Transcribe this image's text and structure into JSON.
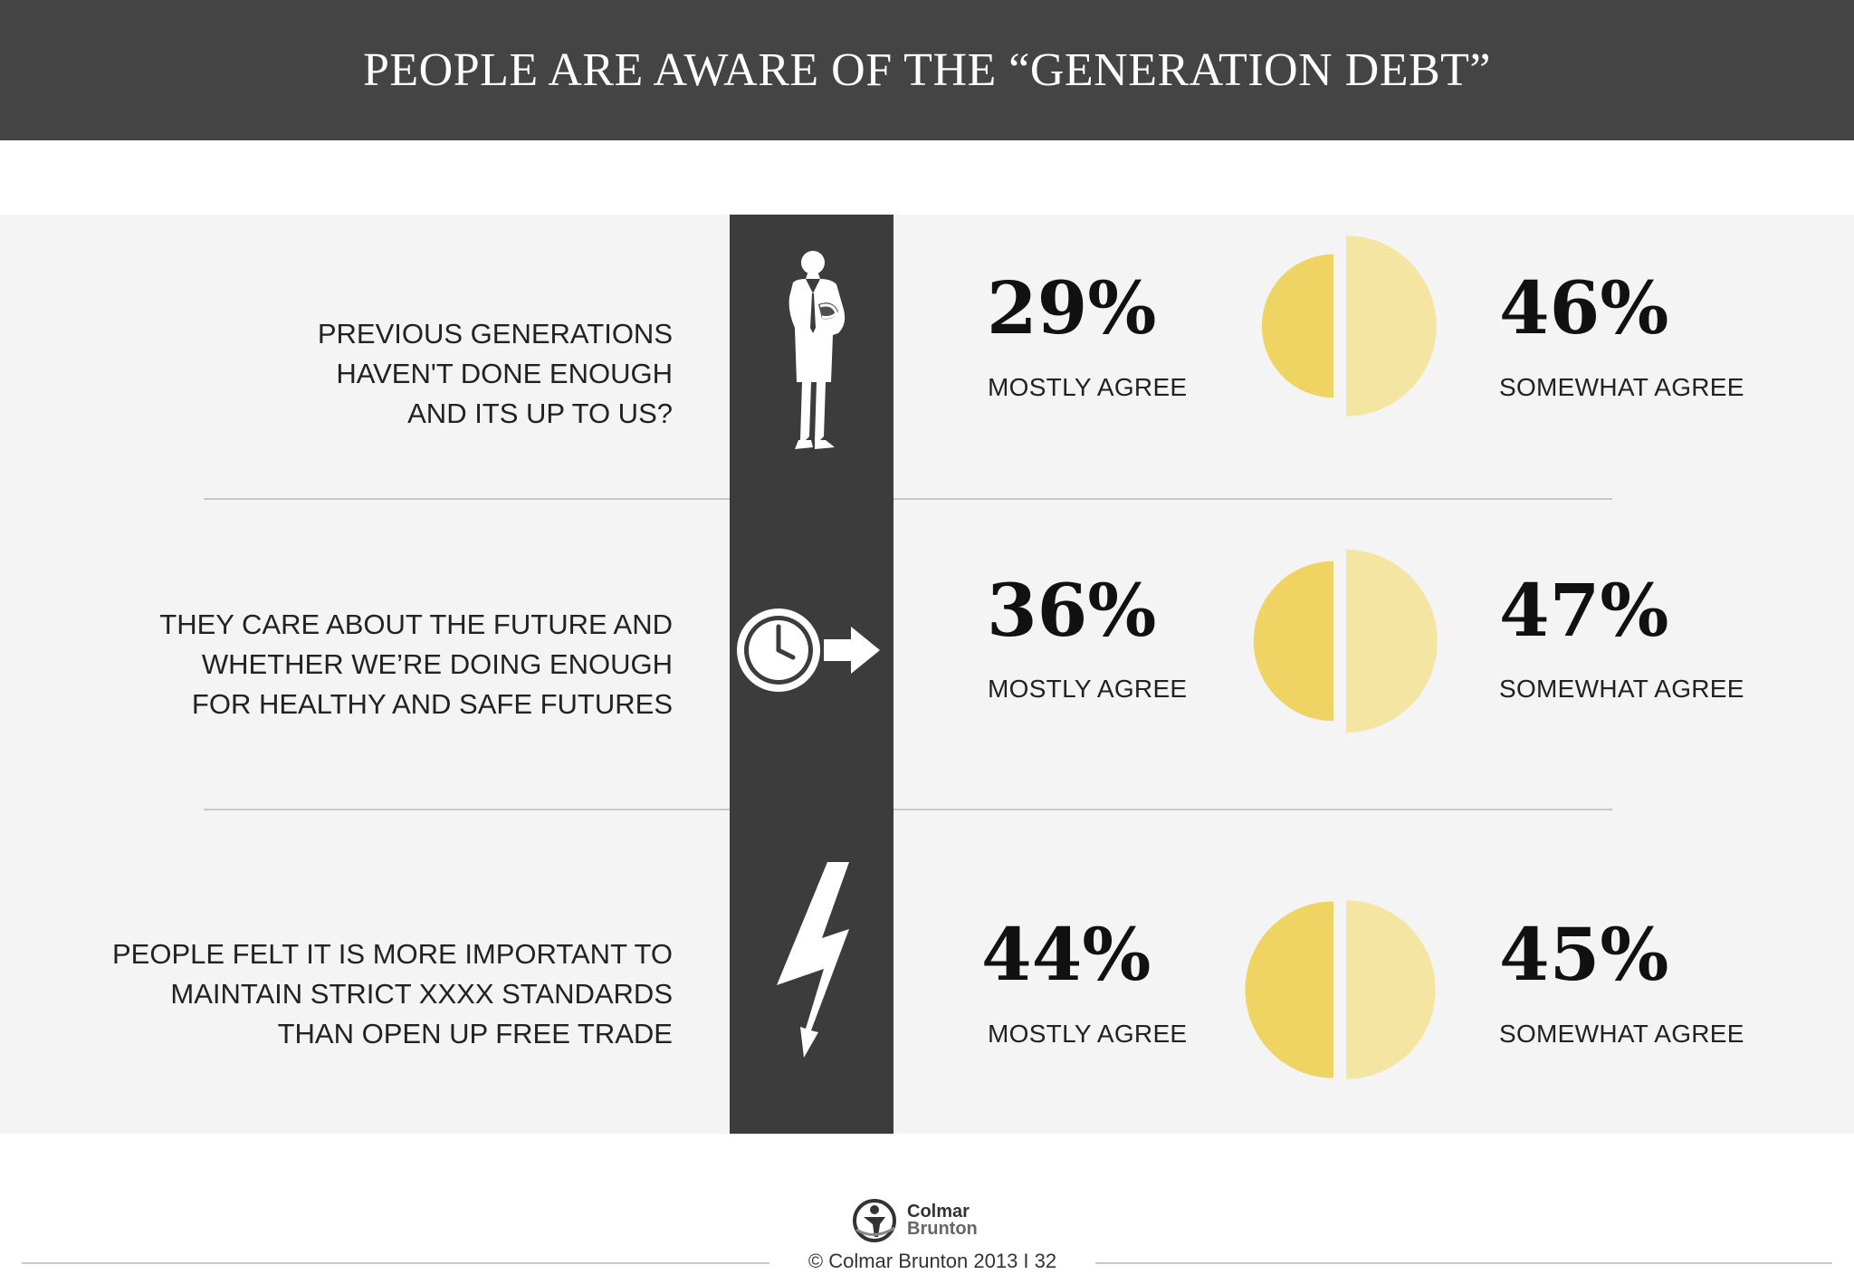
{
  "header": {
    "title": "PEOPLE ARE AWARE OF THE “GENERATION DEBT”"
  },
  "colors": {
    "mostly": "#EFD363",
    "somewhat": "#F4E5A3",
    "spine": "#3C3C3C",
    "header": "#444444"
  },
  "rows": [
    {
      "statement": "PREVIOUS GENERATIONS\nHAVEN'T DONE ENOUGH\nAND ITS UP TO US?",
      "icon": "businessman-icon",
      "mostly_pct": "29%",
      "mostly_label": "MOSTLY AGREE",
      "somewhat_pct": "46%",
      "somewhat_label": "SOMEWHAT AGREE"
    },
    {
      "statement": "THEY CARE ABOUT THE FUTURE AND\nWHETHER WE’RE DOING ENOUGH\nFOR HEALTHY AND SAFE FUTURES",
      "icon": "clock-arrow-icon",
      "mostly_pct": "36%",
      "mostly_label": "MOSTLY AGREE",
      "somewhat_pct": "47%",
      "somewhat_label": "SOMEWHAT AGREE"
    },
    {
      "statement": "PEOPLE FELT IT IS MORE IMPORTANT TO\nMAINTAIN STRICT XXXX STANDARDS\nTHAN OPEN UP FREE TRADE",
      "icon": "lightning-bolt-icon",
      "mostly_pct": "44%",
      "mostly_label": "MOSTLY AGREE",
      "somewhat_pct": "45%",
      "somewhat_label": "SOMEWHAT AGREE"
    }
  ],
  "chart_data": {
    "type": "pie",
    "title": "PEOPLE ARE AWARE OF THE “GENERATION DEBT”",
    "categories": [
      "PREVIOUS GENERATIONS HAVEN'T DONE ENOUGH AND ITS UP TO US?",
      "THEY CARE ABOUT THE FUTURE AND WHETHER WE’RE DOING ENOUGH FOR HEALTHY AND SAFE FUTURES",
      "PEOPLE FELT IT IS MORE IMPORTANT TO MAINTAIN STRICT XXXX STANDARDS THAN OPEN UP FREE TRADE"
    ],
    "series": [
      {
        "name": "MOSTLY AGREE",
        "values": [
          29,
          36,
          44
        ],
        "color": "#EFD363"
      },
      {
        "name": "SOMEWHAT AGREE",
        "values": [
          46,
          47,
          45
        ],
        "color": "#F4E5A3"
      }
    ]
  },
  "footer": {
    "copyright": "© Colmar Brunton 2013  I  32",
    "logo_line1": "Colmar",
    "logo_line2": "Brunton"
  }
}
